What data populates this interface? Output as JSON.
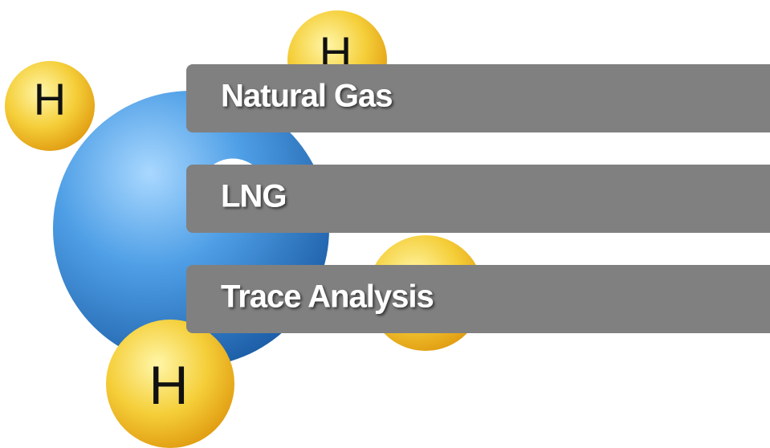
{
  "atoms": [
    "H",
    "H",
    "H"
  ],
  "menu": [
    "Natural Gas",
    "LNG",
    "Trace Analysis"
  ]
}
